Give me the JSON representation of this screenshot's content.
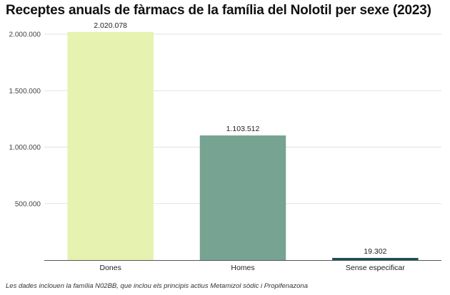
{
  "chart_data": {
    "type": "bar",
    "title": "Receptes anuals de fàrmacs de la família del Nolotil per sexe (2023)",
    "categories": [
      "Dones",
      "Homes",
      "Sense especificar"
    ],
    "values": [
      2020078,
      1103512,
      19302
    ],
    "value_labels": [
      "2.020.078",
      "1.103.512",
      "19.302"
    ],
    "colors": [
      "#e6f2b0",
      "#76a392",
      "#1f4e57"
    ],
    "ylim": [
      0,
      2000000
    ],
    "yticks": [
      500000,
      1000000,
      1500000,
      2000000
    ],
    "ytick_labels": [
      "500.000",
      "1.000.000",
      "1.500.000",
      "2.000.000"
    ],
    "grid": true,
    "legend": "none"
  },
  "note": "Les dades inclouen la família N02BB, que inclou els principis actius Metamizol sòdic i Propifenazona"
}
